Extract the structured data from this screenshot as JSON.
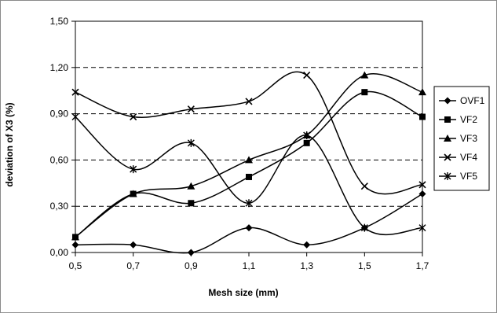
{
  "chart_data": {
    "type": "line",
    "title": "",
    "xlabel": "Mesh size (mm)",
    "ylabel": "deviation of X3 (%)",
    "x": [
      0.5,
      0.7,
      0.9,
      1.1,
      1.3,
      1.5,
      1.7
    ],
    "x_tick_labels": [
      "0,5",
      "0,7",
      "0,9",
      "1,1",
      "1,3",
      "1,5",
      "1,7"
    ],
    "ylim": [
      0,
      1.5
    ],
    "y_ticks": [
      0,
      0.3,
      0.6,
      0.9,
      1.2,
      1.5
    ],
    "y_tick_labels": [
      "0,00",
      "0,30",
      "0,60",
      "0,90",
      "1,20",
      "1,50"
    ],
    "grid": "horizontal dashed",
    "legend_position": "right",
    "series": [
      {
        "name": "OVF1",
        "marker": "diamond",
        "values": [
          0.05,
          0.05,
          0.0,
          0.16,
          0.05,
          0.16,
          0.38
        ]
      },
      {
        "name": "VF2",
        "marker": "square",
        "values": [
          0.1,
          0.38,
          0.32,
          0.49,
          0.71,
          1.04,
          0.88
        ]
      },
      {
        "name": "VF3",
        "marker": "triangle",
        "values": [
          0.1,
          0.38,
          0.43,
          0.6,
          0.76,
          1.15,
          1.04
        ]
      },
      {
        "name": "VF4",
        "marker": "x",
        "values": [
          1.04,
          0.88,
          0.93,
          0.98,
          1.15,
          0.43,
          0.44
        ]
      },
      {
        "name": "VF5",
        "marker": "star",
        "values": [
          0.88,
          0.54,
          0.71,
          0.32,
          0.76,
          0.16,
          0.16
        ]
      }
    ],
    "colors": {
      "line": "#000000",
      "grid": "#000000",
      "background": "#ffffff",
      "frame": "#000000"
    }
  }
}
